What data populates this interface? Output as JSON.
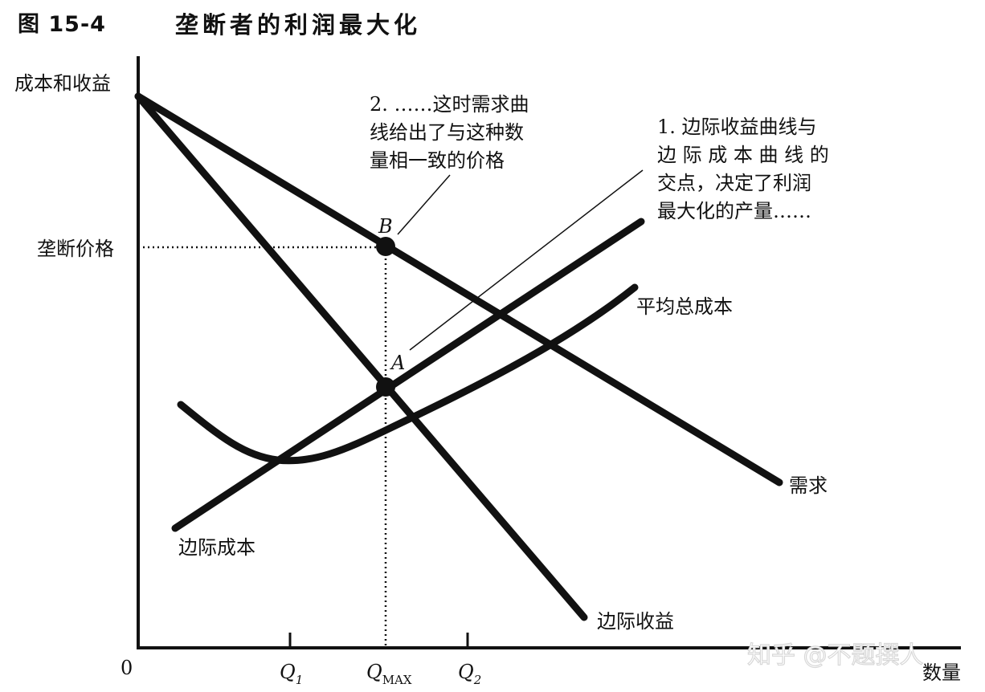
{
  "figure": {
    "number": "图 15-4",
    "title": "垄断者的利润最大化"
  },
  "axes": {
    "y_label": "成本和收益",
    "x_label": "数量",
    "origin": "0",
    "monopoly_price_label": "垄断价格",
    "q1": {
      "letter": "Q",
      "sub": "1"
    },
    "qmax": {
      "letter": "Q",
      "sub": "MAX"
    },
    "q2": {
      "letter": "Q",
      "sub": "2"
    }
  },
  "curves": {
    "demand": "需求",
    "marginal_revenue": "边际收益",
    "marginal_cost": "边际成本",
    "average_total_cost": "平均总成本"
  },
  "points": {
    "a": "A",
    "b": "B"
  },
  "annotations": {
    "note1": [
      "1. 边际收益曲线与",
      "边 际 成 本 曲 线 的",
      "交点，决定了利润",
      "最大化的产量……"
    ],
    "note2": [
      "2. ……这时需求曲",
      "线给出了与这种数",
      "量相一致的价格"
    ]
  },
  "watermark": "知乎 @不题撰人"
}
